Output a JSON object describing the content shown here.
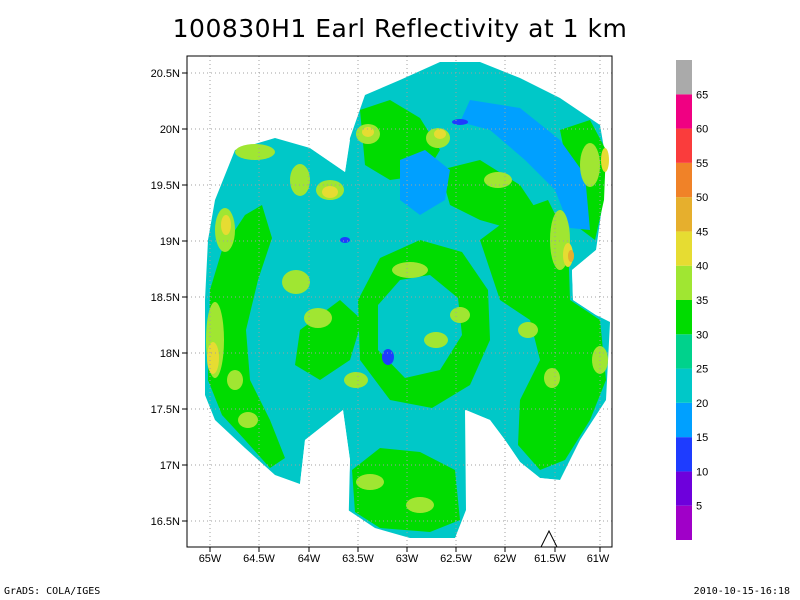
{
  "title": "100830H1 Earl Reflectivity at 1 km",
  "footer": {
    "left": "GrADS: COLA/IGES",
    "right": "2010-10-15-16:18"
  },
  "map": {
    "lon_range": [
      -65.25,
      -60.85
    ],
    "lat_range": [
      16.25,
      20.75
    ],
    "x_ticks": [
      "65W",
      "64.5W",
      "64W",
      "63.5W",
      "63W",
      "62.5W",
      "62W",
      "61.5W",
      "61W"
    ],
    "y_ticks": [
      "16.5N",
      "17N",
      "17.5N",
      "18N",
      "18.5N",
      "19N",
      "19.5N",
      "20N",
      "20.5N"
    ],
    "grid": "dotted"
  },
  "colorbar": {
    "labels": [
      "5",
      "10",
      "15",
      "20",
      "25",
      "30",
      "35",
      "40",
      "45",
      "50",
      "55",
      "60",
      "65"
    ],
    "colors": [
      "#a000c8",
      "#6e00dc",
      "#1e3cff",
      "#00a0ff",
      "#00c8c8",
      "#00d28c",
      "#00dc00",
      "#a0e632",
      "#e6dc32",
      "#e6af2d",
      "#f08228",
      "#fa3c3c",
      "#f00082",
      "#aaaaaa"
    ]
  },
  "palette": {
    "teal": "#00c8c8",
    "seafoam": "#00d28c",
    "green": "#00dc00",
    "lime": "#a0e632",
    "yellow": "#e6dc32",
    "orange": "#e6af2d",
    "blue": "#00a0ff",
    "deepblue": "#1e3cff"
  }
}
